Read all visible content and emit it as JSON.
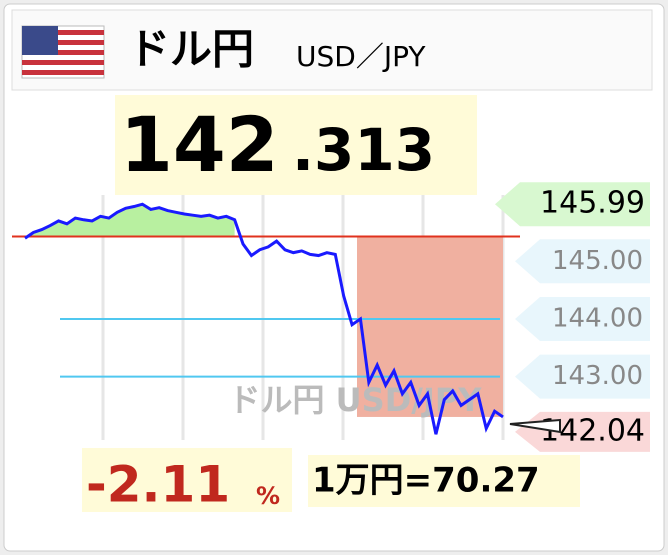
{
  "header": {
    "title": "ドル円",
    "pair": "USD／JPY"
  },
  "price": {
    "integer": "142",
    "decimal": ".313"
  },
  "chart_data": {
    "type": "line",
    "watermark": "ドル円 USD/JPY",
    "series": [
      {
        "color": "#1a1aff",
        "values": [
          145.4,
          145.5,
          145.55,
          145.62,
          145.7,
          145.65,
          145.75,
          145.72,
          145.7,
          145.78,
          145.75,
          145.85,
          145.92,
          145.95,
          145.99,
          145.9,
          145.93,
          145.88,
          145.85,
          145.82,
          145.8,
          145.78,
          145.8,
          145.75,
          145.78,
          145.72,
          145.3,
          145.1,
          145.2,
          145.25,
          145.35,
          145.2,
          145.15,
          145.18,
          145.12,
          145.1,
          145.15,
          145.12,
          144.4,
          143.9,
          144.0,
          142.9,
          143.2,
          142.85,
          143.1,
          142.7,
          142.9,
          142.5,
          142.7,
          142.0,
          142.6,
          142.75,
          142.5,
          142.6,
          142.7,
          142.1,
          142.4,
          142.3
        ]
      }
    ],
    "reference": 145.43,
    "reference_color": "#e0321e",
    "ylim": [
      141.9,
      146.15
    ],
    "yticks": [
      {
        "value": 145,
        "label": "145.00"
      },
      {
        "value": 144,
        "label": "144.00"
      },
      {
        "value": 143,
        "label": "143.00"
      }
    ],
    "high": 145.99,
    "low": 142.04
  },
  "footer": {
    "change": "-2.11",
    "change_unit": "%",
    "conversion": "1万円=70.27"
  }
}
